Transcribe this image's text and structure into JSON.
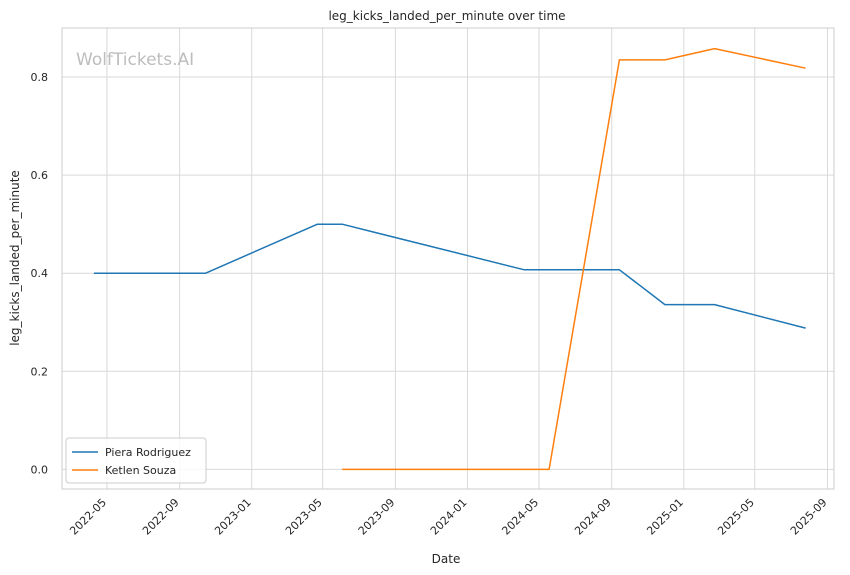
{
  "chart_data": {
    "type": "line",
    "title": "leg_kicks_landed_per_minute over time",
    "xlabel": "Date",
    "ylabel": "leg_kicks_landed_per_minute",
    "watermark": "WolfTickets.AI",
    "xlim": [
      "2022-02-14",
      "2025-09-12"
    ],
    "ylim": [
      -0.04,
      0.9
    ],
    "x_ticks": [
      "2022-05",
      "2022-09",
      "2023-01",
      "2023-05",
      "2023-09",
      "2024-01",
      "2024-05",
      "2024-09",
      "2025-01",
      "2025-05",
      "2025-09"
    ],
    "y_ticks": [
      0.0,
      0.2,
      0.4,
      0.6,
      0.8
    ],
    "y_tick_labels": [
      "0.0",
      "0.2",
      "0.4",
      "0.6",
      "0.8"
    ],
    "grid": true,
    "legend_position": "lower-left",
    "series": [
      {
        "name": "Piera Rodriguez",
        "color": "#1f77b4",
        "points": [
          {
            "x": "2022-04-09",
            "y": 0.4
          },
          {
            "x": "2022-10-15",
            "y": 0.4
          },
          {
            "x": "2023-04-22",
            "y": 0.5
          },
          {
            "x": "2023-06-03",
            "y": 0.5
          },
          {
            "x": "2024-04-06",
            "y": 0.407
          },
          {
            "x": "2024-09-14",
            "y": 0.407
          },
          {
            "x": "2024-11-30",
            "y": 0.336
          },
          {
            "x": "2025-02-22",
            "y": 0.336
          },
          {
            "x": "2025-07-26",
            "y": 0.288
          }
        ]
      },
      {
        "name": "Ketlen Souza",
        "color": "#ff7f0e",
        "points": [
          {
            "x": "2023-06-03",
            "y": 0.0
          },
          {
            "x": "2024-05-18",
            "y": 0.0
          },
          {
            "x": "2024-09-14",
            "y": 0.835
          },
          {
            "x": "2024-11-30",
            "y": 0.835
          },
          {
            "x": "2025-02-22",
            "y": 0.858
          },
          {
            "x": "2025-07-26",
            "y": 0.818
          }
        ]
      }
    ]
  }
}
